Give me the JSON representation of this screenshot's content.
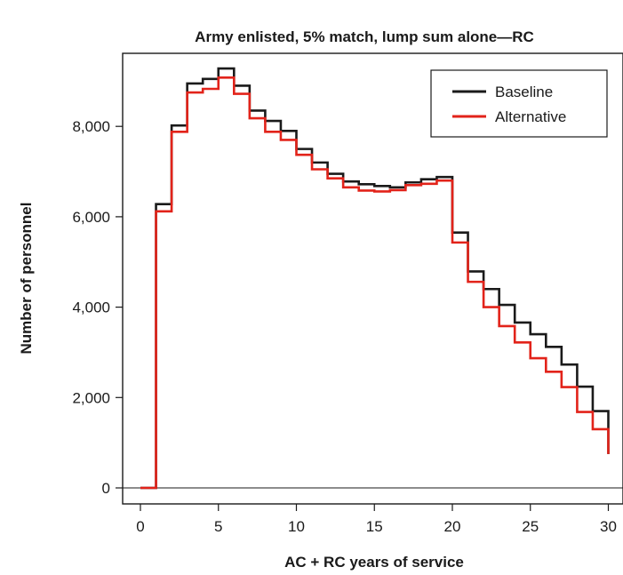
{
  "chart_data": {
    "type": "line",
    "step": true,
    "title": "Army enlisted, 5% match, lump sum alone—RC",
    "xlabel": "AC + RC years of service",
    "ylabel": "Number of personnel",
    "xlim": [
      0,
      30
    ],
    "ylim": [
      0,
      9500
    ],
    "x_ticks": [
      0,
      5,
      10,
      15,
      20,
      25,
      30
    ],
    "x_tick_labels": [
      "0",
      "5",
      "10",
      "15",
      "20",
      "25",
      "30"
    ],
    "y_ticks": [
      0,
      2000,
      4000,
      6000,
      8000
    ],
    "y_tick_labels": [
      "0",
      "2,000",
      "4,000",
      "6,000",
      "8,000"
    ],
    "grid": false,
    "reference_line_y": 0,
    "legend_position": "top-right",
    "series": [
      {
        "name": "Baseline",
        "color": "#1a1a1a",
        "x": [
          0,
          1,
          2,
          3,
          4,
          5,
          6,
          7,
          8,
          9,
          10,
          11,
          12,
          13,
          14,
          15,
          16,
          17,
          18,
          19,
          20,
          21,
          22,
          23,
          24,
          25,
          26,
          27,
          28,
          29,
          30
        ],
        "values": [
          0,
          6280,
          8020,
          8950,
          9050,
          9280,
          8900,
          8350,
          8120,
          7900,
          7500,
          7200,
          6950,
          6780,
          6720,
          6680,
          6650,
          6760,
          6830,
          6880,
          5650,
          4790,
          4400,
          4050,
          3660,
          3400,
          3120,
          2730,
          2240,
          1700,
          750
        ]
      },
      {
        "name": "Alternative",
        "color": "#e2231a",
        "x": [
          0,
          1,
          2,
          3,
          4,
          5,
          6,
          7,
          8,
          9,
          10,
          11,
          12,
          13,
          14,
          15,
          16,
          17,
          18,
          19,
          20,
          21,
          22,
          23,
          24,
          25,
          26,
          27,
          28,
          29,
          30
        ],
        "values": [
          0,
          6120,
          7880,
          8750,
          8830,
          9080,
          8720,
          8180,
          7880,
          7700,
          7370,
          7050,
          6850,
          6650,
          6580,
          6560,
          6590,
          6700,
          6730,
          6800,
          5430,
          4560,
          4000,
          3580,
          3220,
          2870,
          2570,
          2230,
          1680,
          1300,
          750
        ]
      }
    ]
  }
}
